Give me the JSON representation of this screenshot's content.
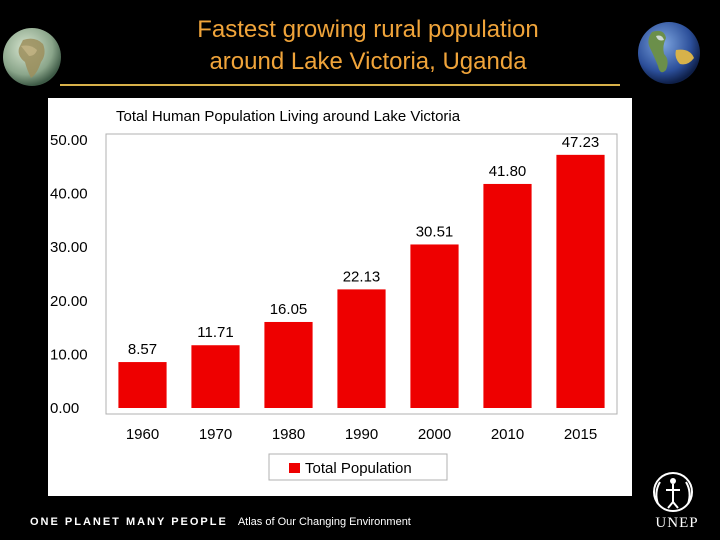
{
  "slide": {
    "title_line1": "Fastest growing rural population",
    "title_line2": "around Lake Victoria, Uganda"
  },
  "footer": {
    "tagline": "ONE PLANET MANY PEOPLE",
    "atlas": "Atlas of Our Changing Environment",
    "org": "UNEP"
  },
  "icons": {
    "left": "africa-globe-icon",
    "right": "americas-globe-icon",
    "logo": "unep-emblem-icon"
  },
  "colors": {
    "title": "#f0a43a",
    "bar": "#ee0000",
    "accent_rule": "#d9b24a"
  },
  "chart_data": {
    "type": "bar",
    "title": "Total Human Population Living around Lake Victoria",
    "categories": [
      "1960",
      "1970",
      "1980",
      "1990",
      "2000",
      "2010",
      "2015"
    ],
    "series": [
      {
        "name": "Total Population",
        "values": [
          8.57,
          11.71,
          16.05,
          22.13,
          30.51,
          41.8,
          47.23
        ]
      }
    ],
    "value_labels": [
      "8.57",
      "11.71",
      "16.05",
      "22.13",
      "30.51",
      "41.80",
      "47.23"
    ],
    "yticks": [
      "0.00",
      "10.00",
      "20.00",
      "30.00",
      "40.00",
      "50.00"
    ],
    "ylim": [
      0,
      50
    ],
    "xlabel": "",
    "ylabel": "",
    "grid": false,
    "legend": "bottom-center"
  }
}
